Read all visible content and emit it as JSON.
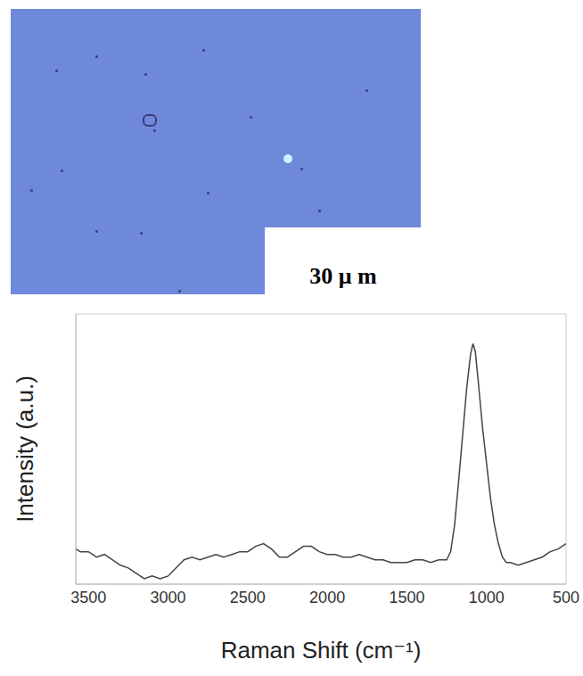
{
  "image": {
    "scale_bar": "30 μ m"
  },
  "chart_data": {
    "type": "line",
    "x_label": "Raman Shift (cm⁻¹)",
    "y_label": "Intensity (a.u.)",
    "x": [
      3580,
      3550,
      3500,
      3450,
      3400,
      3350,
      3300,
      3250,
      3200,
      3150,
      3100,
      3050,
      3000,
      2950,
      2900,
      2850,
      2800,
      2750,
      2700,
      2650,
      2600,
      2550,
      2500,
      2450,
      2400,
      2350,
      2300,
      2250,
      2200,
      2150,
      2100,
      2050,
      2000,
      1950,
      1900,
      1850,
      1800,
      1750,
      1700,
      1650,
      1600,
      1550,
      1500,
      1450,
      1400,
      1350,
      1300,
      1250,
      1225,
      1200,
      1175,
      1150,
      1125,
      1100,
      1085,
      1070,
      1050,
      1025,
      1000,
      975,
      950,
      925,
      900,
      875,
      850,
      800,
      750,
      700,
      650,
      600,
      550,
      500
    ],
    "values": [
      13,
      12,
      12,
      10,
      11,
      9,
      7,
      6,
      4,
      2,
      3,
      2,
      3,
      6,
      9,
      10,
      9,
      10,
      11,
      10,
      11,
      12,
      12,
      14,
      15,
      13,
      10,
      10,
      12,
      14,
      14,
      12,
      11,
      11,
      10,
      10,
      11,
      10,
      9,
      9,
      8,
      8,
      8,
      9,
      9,
      8,
      9,
      9,
      12,
      22,
      38,
      55,
      72,
      85,
      89,
      86,
      74,
      58,
      45,
      32,
      22,
      15,
      10,
      8,
      8,
      7,
      8,
      9,
      10,
      12,
      13,
      15
    ],
    "color": "#444444",
    "xlim": [
      3580,
      500
    ],
    "xticks": [
      3500,
      3000,
      2500,
      2000,
      1500,
      1000,
      500
    ],
    "ylim": [
      0,
      100
    ],
    "grid": false,
    "tick_labels": "x"
  }
}
